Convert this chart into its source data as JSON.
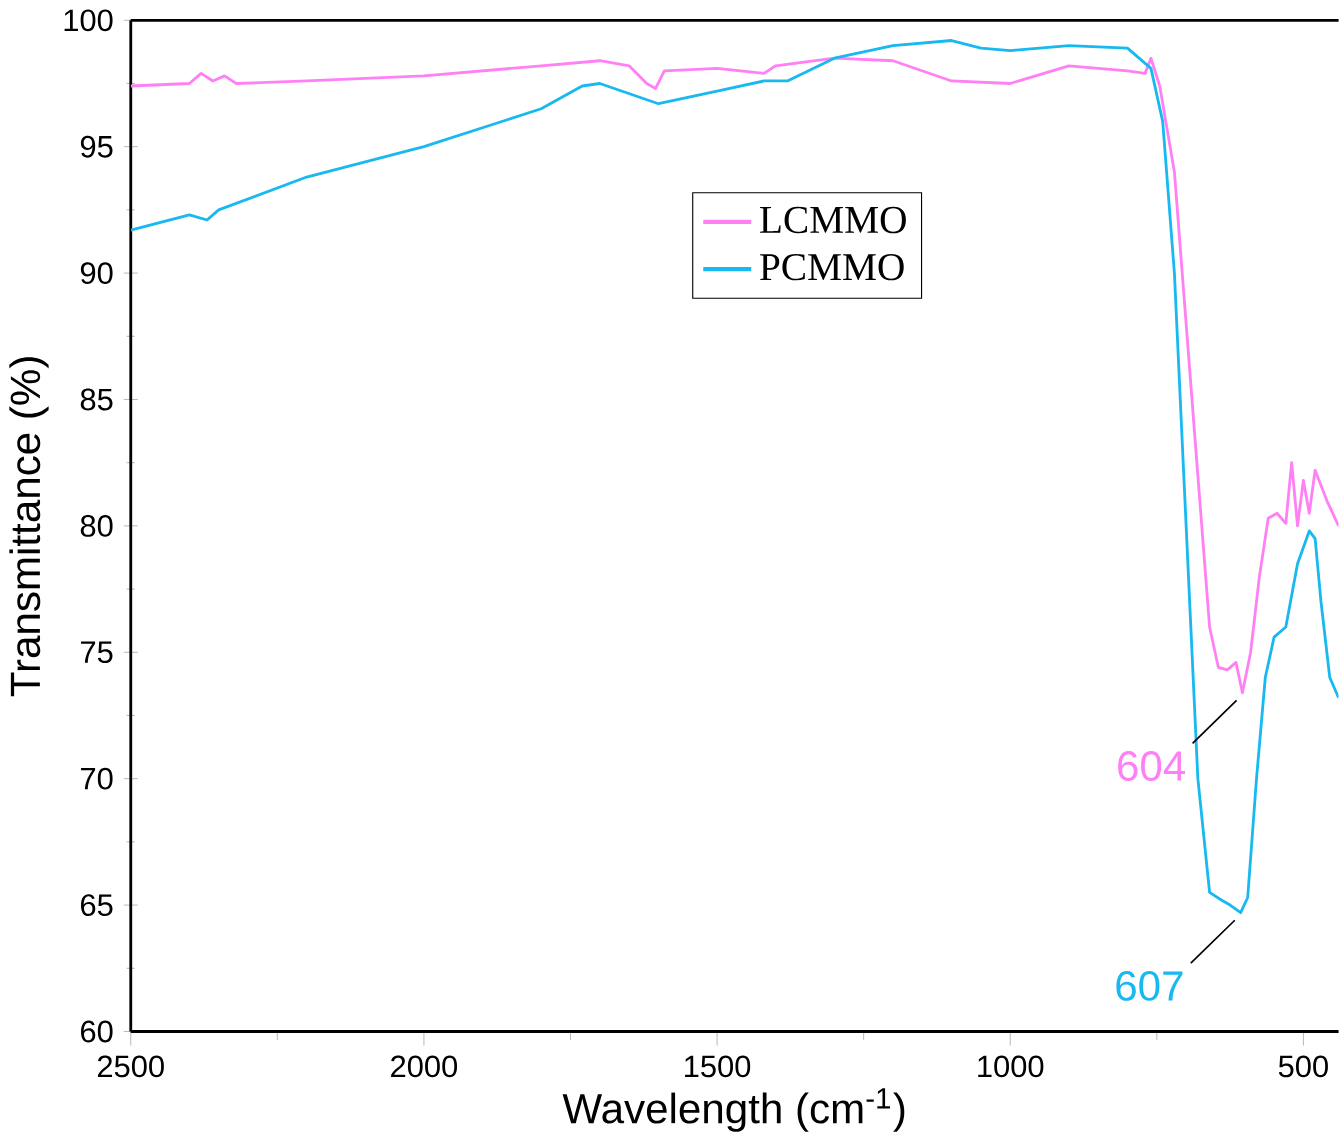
{
  "chart_data": {
    "type": "line",
    "xlabel": "Wavelength (cm$^{-1}$)",
    "ylabel": "Transmittance (%)",
    "xlim": [
      2500,
      440
    ],
    "xticks": [
      2500,
      2000,
      1500,
      1000,
      500
    ],
    "ylim": [
      60,
      100
    ],
    "yticks": [
      60,
      65,
      70,
      75,
      80,
      85,
      90,
      95,
      100
    ],
    "grid": false,
    "legend": "top",
    "marker": "none",
    "line_style": "solid",
    "series": [
      {
        "name": "LCMMO",
        "color": "#ff80f4",
        "x": [
          2500,
          2400,
          2380,
          2360,
          2340,
          2320,
          2200,
          2000,
          1800,
          1700,
          1650,
          1620,
          1605,
          1590,
          1500,
          1420,
          1400,
          1300,
          1200,
          1100,
          1000,
          900,
          800,
          770,
          760,
          745,
          720,
          700,
          680,
          660,
          645,
          630,
          615,
          604,
          590,
          575,
          560,
          545,
          530,
          520,
          510,
          500,
          490,
          480,
          460,
          440
        ],
        "values": [
          97.4,
          97.5,
          97.9,
          97.6,
          97.8,
          97.5,
          97.6,
          97.8,
          98.2,
          98.4,
          98.2,
          97.5,
          97.3,
          98.0,
          98.1,
          97.9,
          98.2,
          98.5,
          98.4,
          97.6,
          97.5,
          98.2,
          98.0,
          97.9,
          98.5,
          97.4,
          94,
          88,
          82,
          76,
          74.4,
          74.3,
          74.6,
          73.4,
          75,
          78,
          80.3,
          80.5,
          80.1,
          82.5,
          80.0,
          81.8,
          80.5,
          82.2,
          81,
          80
        ]
      },
      {
        "name": "PCMMO",
        "color": "#18b8f0",
        "x": [
          2500,
          2400,
          2370,
          2350,
          2200,
          2000,
          1800,
          1730,
          1700,
          1650,
          1600,
          1500,
          1420,
          1380,
          1300,
          1200,
          1100,
          1050,
          1000,
          900,
          800,
          760,
          740,
          720,
          700,
          680,
          660,
          640,
          625,
          607,
          595,
          580,
          565,
          550,
          530,
          510,
          490,
          480,
          470,
          455,
          440
        ],
        "values": [
          91.7,
          92.3,
          92.1,
          92.5,
          93.8,
          95.0,
          96.5,
          97.4,
          97.5,
          97.1,
          96.7,
          97.2,
          97.6,
          97.6,
          98.5,
          99.0,
          99.2,
          98.9,
          98.8,
          99.0,
          98.9,
          98.1,
          96,
          90,
          80,
          70,
          65.5,
          65.2,
          65.0,
          64.7,
          65.3,
          70,
          74,
          75.6,
          76,
          78.5,
          79.8,
          79.5,
          77,
          74,
          73.2
        ]
      }
    ],
    "annotations": [
      {
        "text": "604",
        "x": 604,
        "y": 73.4
      },
      {
        "text": "607",
        "x": 607,
        "y": 64.7
      }
    ]
  }
}
